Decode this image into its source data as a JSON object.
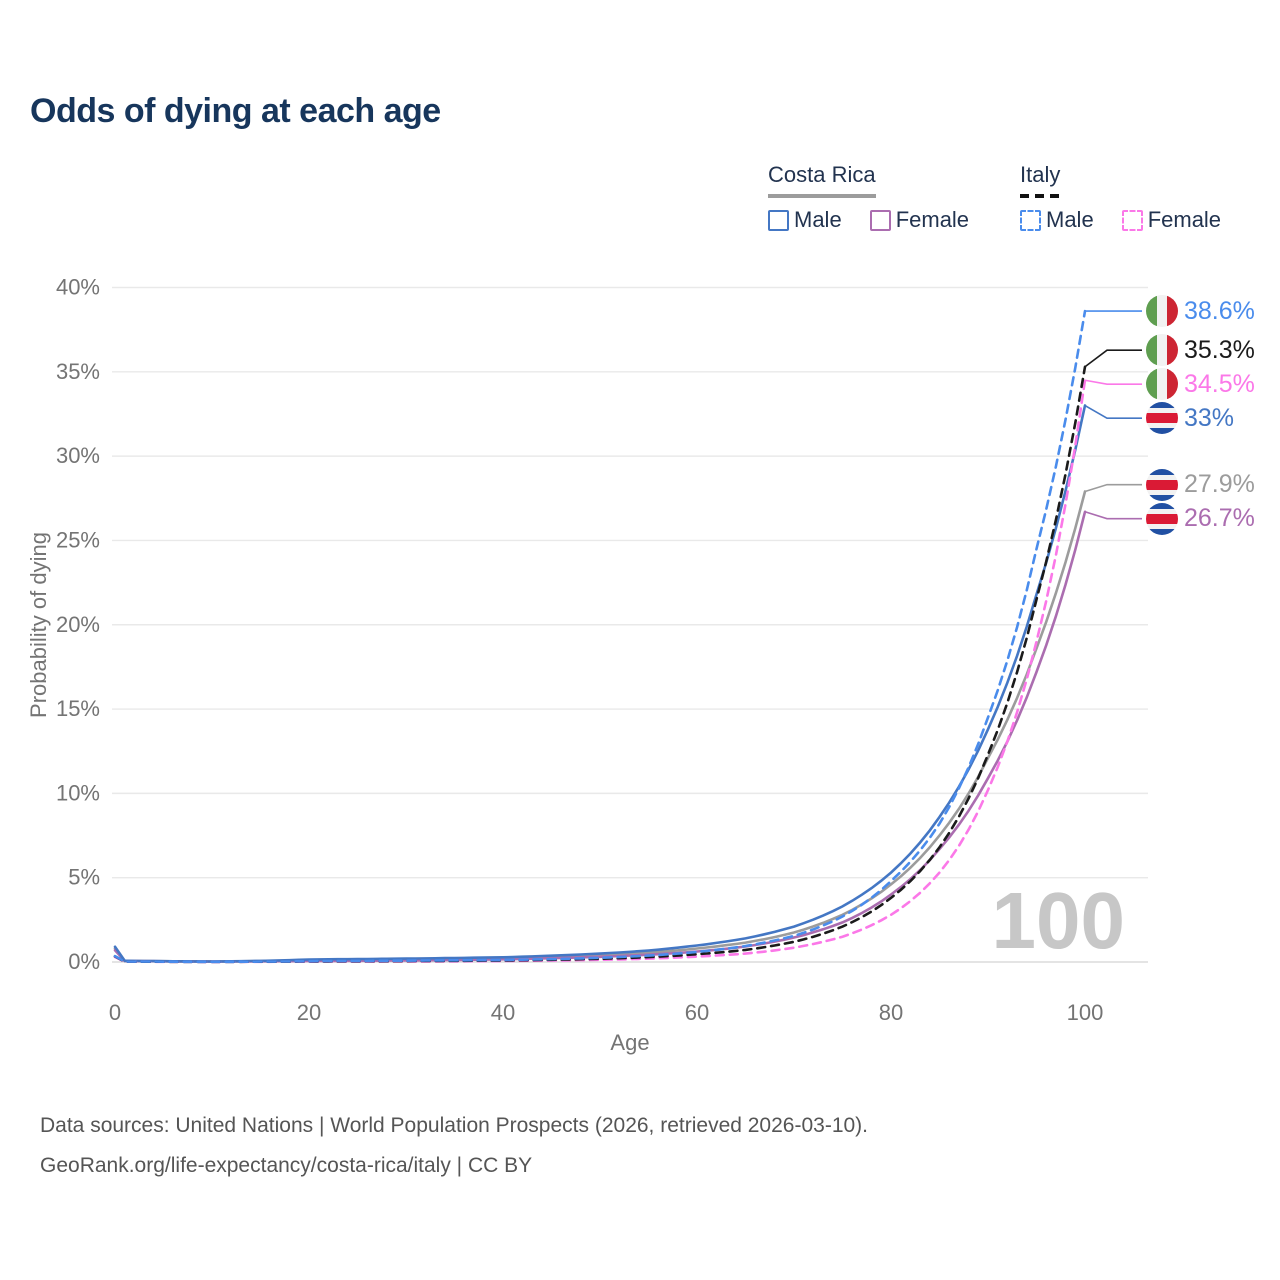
{
  "title": "Odds of dying at each age",
  "legend": {
    "groups": [
      {
        "name": "Costa Rica",
        "line_style": "solid",
        "underline_color": "#9c9c9c",
        "items": [
          {
            "label": "Male",
            "color": "#4477c4",
            "dashed": false
          },
          {
            "label": "Female",
            "color": "#ab6db0",
            "dashed": false
          }
        ]
      },
      {
        "name": "Italy",
        "line_style": "dashed",
        "underline_color": "#111111",
        "items": [
          {
            "label": "Male",
            "color": "#4a8cec",
            "dashed": true
          },
          {
            "label": "Female",
            "color": "#fb78e8",
            "dashed": true
          }
        ]
      }
    ]
  },
  "chart_data": {
    "type": "line",
    "title": "Odds of dying at each age",
    "xlabel": "Age",
    "ylabel": "Probability of dying",
    "xlim": [
      0,
      100
    ],
    "ylim": [
      0,
      40
    ],
    "y_unit": "%",
    "x_ticks": [
      0,
      20,
      40,
      60,
      80,
      100
    ],
    "y_ticks": [
      0,
      5,
      10,
      15,
      20,
      25,
      30,
      35,
      40
    ],
    "grid": "horizontal",
    "hovered_age": "100",
    "ages": [
      0,
      1,
      10,
      20,
      30,
      40,
      50,
      55,
      60,
      65,
      70,
      75,
      80,
      85,
      90,
      95,
      100
    ],
    "series": [
      {
        "name": "Italy Male",
        "country": "Italy",
        "sex": "Male",
        "color": "#4a8cec",
        "dashed": true,
        "flag": "italy",
        "end_label": "38.6%",
        "values": [
          0.35,
          0.03,
          0.01,
          0.05,
          0.08,
          0.12,
          0.25,
          0.38,
          0.6,
          0.95,
          1.55,
          2.7,
          4.8,
          8.2,
          14.5,
          24.5,
          38.6
        ]
      },
      {
        "name": "Italy Both sexes",
        "country": "Italy",
        "sex": "Both",
        "color": "#1b1b1b",
        "dashed": true,
        "flag": "italy",
        "end_label": "35.3%",
        "values": [
          0.33,
          0.025,
          0.009,
          0.035,
          0.055,
          0.09,
          0.19,
          0.29,
          0.46,
          0.72,
          1.2,
          2.1,
          3.8,
          6.8,
          12.3,
          21.5,
          35.3
        ]
      },
      {
        "name": "Italy Female",
        "country": "Italy",
        "sex": "Female",
        "color": "#fb78e8",
        "dashed": true,
        "flag": "italy",
        "end_label": "34.5%",
        "values": [
          0.3,
          0.02,
          0.008,
          0.02,
          0.03,
          0.06,
          0.13,
          0.2,
          0.32,
          0.5,
          0.85,
          1.5,
          2.8,
          5.3,
          10.2,
          19.0,
          34.5
        ]
      },
      {
        "name": "Costa Rica Male",
        "country": "Costa Rica",
        "sex": "Male",
        "color": "#4477c4",
        "dashed": false,
        "flag": "costa-rica",
        "end_label": "33%",
        "values": [
          0.9,
          0.07,
          0.03,
          0.15,
          0.2,
          0.28,
          0.5,
          0.68,
          0.98,
          1.4,
          2.1,
          3.3,
          5.3,
          8.6,
          13.8,
          21.8,
          33
        ]
      },
      {
        "name": "Costa Rica Both sexes",
        "country": "Costa Rica",
        "sex": "Both",
        "color": "#9c9c9c",
        "dashed": false,
        "flag": "costa-rica",
        "end_label": "27.9%",
        "values": [
          0.8,
          0.065,
          0.028,
          0.11,
          0.15,
          0.22,
          0.4,
          0.55,
          0.8,
          1.15,
          1.75,
          2.8,
          4.6,
          7.5,
          12.1,
          18.6,
          27.9
        ]
      },
      {
        "name": "Costa Rica Female",
        "country": "Costa Rica",
        "sex": "Female",
        "color": "#ab6db0",
        "dashed": false,
        "flag": "costa-rica",
        "end_label": "26.7%",
        "values": [
          0.7,
          0.06,
          0.025,
          0.06,
          0.09,
          0.16,
          0.31,
          0.43,
          0.62,
          0.92,
          1.45,
          2.35,
          4.0,
          6.7,
          10.9,
          17.2,
          26.7
        ]
      }
    ]
  },
  "flags": {
    "italy": {
      "left": "#5f9e50",
      "mid": "#f2f2f2",
      "right": "#cd2533"
    },
    "costa_rica": {
      "blue": "#2150a3",
      "white": "#f2f2f2",
      "red": "#da1a35"
    }
  },
  "watermark": "100",
  "footer": {
    "line1": "Data sources: United Nations | World Population Prospects (2026, retrieved 2026-03-10).",
    "line2": "GeoRank.org/life-expectancy/costa-rica/italy | CC BY"
  }
}
